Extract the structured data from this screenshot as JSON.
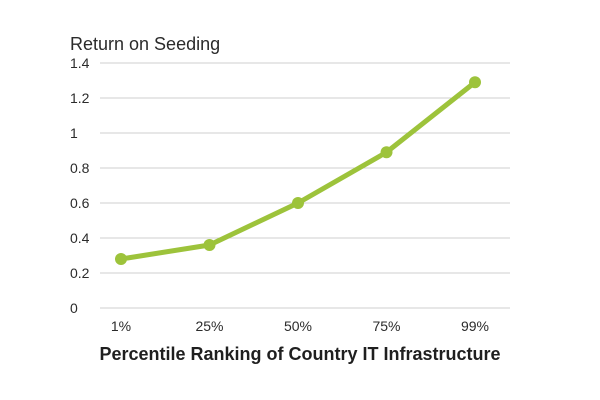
{
  "chart_data": {
    "type": "line",
    "title": "",
    "ylabel": "Return on Seeding",
    "xlabel": "Percentile Ranking of Country IT Infrastructure",
    "categories": [
      "1%",
      "25%",
      "50%",
      "75%",
      "99%"
    ],
    "series": [
      {
        "values": [
          0.28,
          0.36,
          0.6,
          0.89,
          1.29
        ]
      }
    ],
    "ylim": [
      0,
      1.4
    ],
    "yticks": [
      {
        "value": 0,
        "label": "0"
      },
      {
        "value": 0.2,
        "label": "0.2"
      },
      {
        "value": 0.4,
        "label": "0.4"
      },
      {
        "value": 0.6,
        "label": "0.6"
      },
      {
        "value": 0.8,
        "label": "0.8"
      },
      {
        "value": 1.0,
        "label": "1"
      },
      {
        "value": 1.2,
        "label": "1.2"
      },
      {
        "value": 1.4,
        "label": "1.4"
      }
    ],
    "grid": true,
    "legend": "none",
    "colors": {
      "line": "#9dc33b",
      "grid": "#cfcfcf",
      "text": "#2b2b2b"
    }
  }
}
